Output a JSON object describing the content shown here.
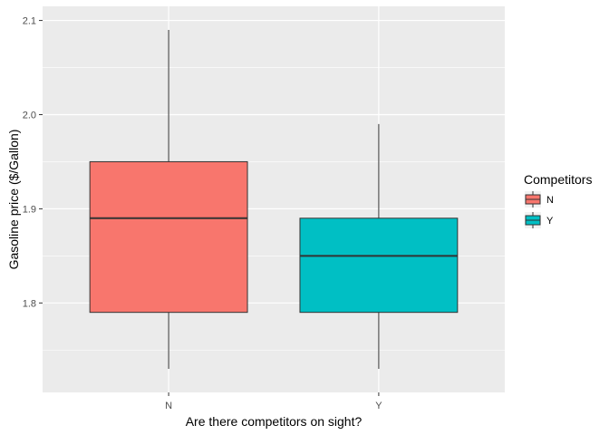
{
  "chart_data": {
    "type": "boxplot",
    "xlabel": "Are there competitors on sight?",
    "ylabel": "Gasoline price ($/Gallon)",
    "ylim": [
      1.705,
      2.115
    ],
    "yticks": [
      1.8,
      1.9,
      2.0,
      2.1
    ],
    "ytick_labels": [
      "1.8",
      "1.9",
      "2.0",
      "2.1"
    ],
    "grid": true,
    "legend": {
      "title": "Competitors",
      "placement": "right",
      "entries": [
        "N",
        "Y"
      ]
    },
    "categories": [
      "N",
      "Y"
    ],
    "boxes": [
      {
        "category": "N",
        "min": 1.73,
        "q1": 1.79,
        "median": 1.89,
        "q3": 1.95,
        "max": 2.09,
        "color": "#F8766D"
      },
      {
        "category": "Y",
        "min": 1.73,
        "q1": 1.79,
        "median": 1.85,
        "q3": 1.89,
        "max": 1.99,
        "color": "#00BFC4"
      }
    ],
    "panel_background": "#EBEBEB",
    "grid_color": "#FFFFFF"
  }
}
